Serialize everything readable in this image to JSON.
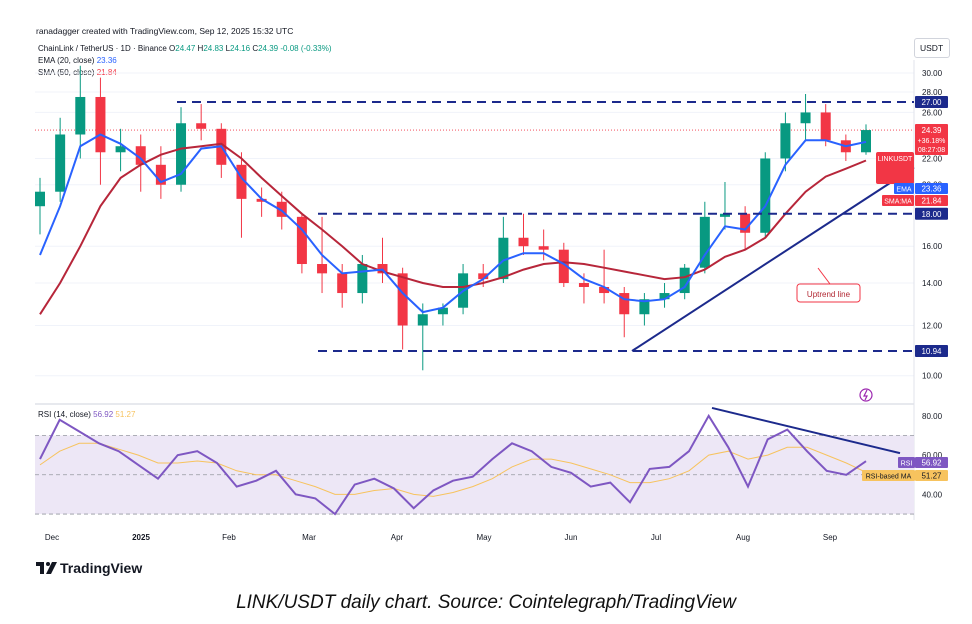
{
  "header": {
    "created_by": "ranadagger created with TradingView.com, Sep 12, 2025 15:32 UTC",
    "currency": "USDT"
  },
  "legend": {
    "symbol": "ChainLink / TetherUS · 1D · Binance",
    "ohlc": {
      "o_label": "O",
      "o": "24.47",
      "h_label": "H",
      "h": "24.83",
      "l_label": "L",
      "l": "24.16",
      "c_label": "C",
      "c": "24.39",
      "change": "-0.08 (-0.33%)"
    },
    "ema_label": "EMA (20, close)",
    "ema_value": "23.36",
    "sma_label": "SMA (50, close)",
    "sma_value": "21.84"
  },
  "rsi_legend": {
    "label": "RSI (14, close)",
    "value": "56.92",
    "ma_value": "51.27"
  },
  "branding": {
    "logo_text": "TradingView"
  },
  "caption": "LINK/USDT daily chart. Source: Cointelegraph/TradingView",
  "colors": {
    "up": "#089981",
    "down": "#f23645",
    "ema": "#2962ff",
    "sma": "#b7263a",
    "level": "#1c2a8c",
    "rsi": "#7e57c2",
    "rsi_ma": "#f7c35e",
    "rsi_band": "#ede7f6"
  },
  "chart_data": [
    {
      "type": "candlestick",
      "title": "ChainLink / TetherUS · 1D · Binance",
      "x_tick_labels": [
        "Dec",
        "2025",
        "Feb",
        "Mar",
        "Apr",
        "May",
        "Jun",
        "Jul",
        "Aug",
        "Sep"
      ],
      "y_tick_labels": [
        "30.00",
        "28.00",
        "26.00",
        "22.00",
        "20.00",
        "16.00",
        "14.00",
        "12.00",
        "10.00"
      ],
      "y_scale": "log",
      "ylim": [
        9.8,
        31.5
      ],
      "horizontal_levels": [
        {
          "label": "27.00",
          "value": 27.0
        },
        {
          "label": "18.00",
          "value": 18.0
        },
        {
          "label": "10.94",
          "value": 10.94
        }
      ],
      "trendline": {
        "label": "Uptrend line",
        "from": {
          "date": "Jun 22",
          "value": 10.94
        },
        "to": {
          "date": "Sep 20",
          "value": 21.3
        }
      },
      "price_labels": {
        "symbol": "LINKUSDT",
        "price": "24.39",
        "change": "+36.18%",
        "countdown": "08:27:08",
        "ema_tag": "EMA",
        "ema_value": "23.36",
        "sma_tag": "SMA:MA",
        "sma_value": "21.84"
      },
      "ohlc_approx_weekly": [
        {
          "week": "Nov 25",
          "o": 18.5,
          "h": 20.5,
          "l": 16.7,
          "c": 19.5
        },
        {
          "week": "Dec 2",
          "o": 19.5,
          "h": 25.5,
          "l": 18.8,
          "c": 24.0
        },
        {
          "week": "Dec 9",
          "o": 24.0,
          "h": 30.8,
          "l": 22.0,
          "c": 27.5
        },
        {
          "week": "Dec 16",
          "o": 27.5,
          "h": 29.5,
          "l": 20.0,
          "c": 22.5
        },
        {
          "week": "Dec 23",
          "o": 22.5,
          "h": 24.5,
          "l": 21.0,
          "c": 23.0
        },
        {
          "week": "Dec 30",
          "o": 23.0,
          "h": 24.0,
          "l": 19.5,
          "c": 21.5
        },
        {
          "week": "Jan 6",
          "o": 21.5,
          "h": 23.0,
          "l": 19.0,
          "c": 20.0
        },
        {
          "week": "Jan 13",
          "o": 20.0,
          "h": 26.5,
          "l": 19.5,
          "c": 25.0
        },
        {
          "week": "Jan 20",
          "o": 25.0,
          "h": 26.8,
          "l": 23.5,
          "c": 24.5
        },
        {
          "week": "Jan 27",
          "o": 24.5,
          "h": 25.0,
          "l": 20.5,
          "c": 21.5
        },
        {
          "week": "Feb 3",
          "o": 21.5,
          "h": 22.5,
          "l": 16.5,
          "c": 19.0
        },
        {
          "week": "Feb 10",
          "o": 19.0,
          "h": 19.8,
          "l": 17.8,
          "c": 18.8
        },
        {
          "week": "Feb 17",
          "o": 18.8,
          "h": 19.5,
          "l": 17.0,
          "c": 17.8
        },
        {
          "week": "Feb 24",
          "o": 17.8,
          "h": 18.0,
          "l": 14.5,
          "c": 15.0
        },
        {
          "week": "Mar 3",
          "o": 15.0,
          "h": 17.8,
          "l": 13.5,
          "c": 14.5
        },
        {
          "week": "Mar 10",
          "o": 14.5,
          "h": 15.0,
          "l": 12.8,
          "c": 13.5
        },
        {
          "week": "Mar 17",
          "o": 13.5,
          "h": 15.5,
          "l": 13.0,
          "c": 15.0
        },
        {
          "week": "Mar 24",
          "o": 15.0,
          "h": 16.5,
          "l": 14.0,
          "c": 14.5
        },
        {
          "week": "Mar 31",
          "o": 14.5,
          "h": 14.8,
          "l": 11.0,
          "c": 12.0
        },
        {
          "week": "Apr 7",
          "o": 12.0,
          "h": 13.0,
          "l": 10.2,
          "c": 12.5
        },
        {
          "week": "Apr 14",
          "o": 12.5,
          "h": 13.0,
          "l": 12.0,
          "c": 12.8
        },
        {
          "week": "Apr 21",
          "o": 12.8,
          "h": 15.0,
          "l": 12.5,
          "c": 14.5
        },
        {
          "week": "Apr 28",
          "o": 14.5,
          "h": 15.0,
          "l": 13.8,
          "c": 14.2
        },
        {
          "week": "May 5",
          "o": 14.2,
          "h": 17.8,
          "l": 14.0,
          "c": 16.5
        },
        {
          "week": "May 12",
          "o": 16.5,
          "h": 18.0,
          "l": 15.5,
          "c": 16.0
        },
        {
          "week": "May 19",
          "o": 16.0,
          "h": 17.0,
          "l": 15.2,
          "c": 15.8
        },
        {
          "week": "May 26",
          "o": 15.8,
          "h": 16.2,
          "l": 13.8,
          "c": 14.0
        },
        {
          "week": "Jun 2",
          "o": 14.0,
          "h": 14.5,
          "l": 13.0,
          "c": 13.8
        },
        {
          "week": "Jun 9",
          "o": 13.8,
          "h": 15.8,
          "l": 13.0,
          "c": 13.5
        },
        {
          "week": "Jun 16",
          "o": 13.5,
          "h": 13.8,
          "l": 11.5,
          "c": 12.5
        },
        {
          "week": "Jun 23",
          "o": 12.5,
          "h": 13.5,
          "l": 12.0,
          "c": 13.2
        },
        {
          "week": "Jun 30",
          "o": 13.2,
          "h": 14.0,
          "l": 12.8,
          "c": 13.5
        },
        {
          "week": "Jul 7",
          "o": 13.5,
          "h": 15.0,
          "l": 13.2,
          "c": 14.8
        },
        {
          "week": "Jul 14",
          "o": 14.8,
          "h": 18.8,
          "l": 14.5,
          "c": 17.8
        },
        {
          "week": "Jul 21",
          "o": 17.8,
          "h": 20.2,
          "l": 17.0,
          "c": 18.0
        },
        {
          "week": "Jul 28",
          "o": 18.0,
          "h": 18.5,
          "l": 15.8,
          "c": 16.8
        },
        {
          "week": "Aug 4",
          "o": 16.8,
          "h": 22.5,
          "l": 16.5,
          "c": 22.0
        },
        {
          "week": "Aug 11",
          "o": 22.0,
          "h": 26.0,
          "l": 21.0,
          "c": 25.0
        },
        {
          "week": "Aug 18",
          "o": 25.0,
          "h": 27.8,
          "l": 23.5,
          "c": 26.0
        },
        {
          "week": "Aug 25",
          "o": 26.0,
          "h": 26.8,
          "l": 23.0,
          "c": 23.5
        },
        {
          "week": "Sep 1",
          "o": 23.5,
          "h": 24.0,
          "l": 21.8,
          "c": 22.5
        },
        {
          "week": "Sep 8",
          "o": 22.5,
          "h": 24.9,
          "l": 22.3,
          "c": 24.39
        }
      ],
      "series": [
        {
          "name": "EMA (20, close)",
          "x": [
            "Nov 25",
            "Dec 2",
            "Dec 9",
            "Dec 16",
            "Dec 23",
            "Dec 30",
            "Jan 6",
            "Jan 13",
            "Jan 20",
            "Jan 27",
            "Feb 3",
            "Feb 10",
            "Feb 17",
            "Feb 24",
            "Mar 3",
            "Mar 10",
            "Mar 17",
            "Mar 24",
            "Mar 31",
            "Apr 7",
            "Apr 14",
            "Apr 21",
            "Apr 28",
            "May 5",
            "May 12",
            "May 19",
            "May 26",
            "Jun 2",
            "Jun 9",
            "Jun 16",
            "Jun 23",
            "Jun 30",
            "Jul 7",
            "Jul 14",
            "Jul 21",
            "Jul 28",
            "Aug 4",
            "Aug 11",
            "Aug 18",
            "Aug 25",
            "Sep 1",
            "Sep 8"
          ],
          "values": [
            15.5,
            18.5,
            23.0,
            24.0,
            23.2,
            22.0,
            20.2,
            20.8,
            22.8,
            23.0,
            20.5,
            19.0,
            18.2,
            17.0,
            15.5,
            14.5,
            14.6,
            14.7,
            13.5,
            12.6,
            12.8,
            13.6,
            14.2,
            15.2,
            15.6,
            15.6,
            15.0,
            14.2,
            13.8,
            13.2,
            13.1,
            13.2,
            13.8,
            15.5,
            17.2,
            17.0,
            18.5,
            21.5,
            23.5,
            23.5,
            23.0,
            23.36
          ]
        },
        {
          "name": "SMA (50, close)",
          "x": [
            "Nov 25",
            "Dec 2",
            "Dec 9",
            "Dec 16",
            "Dec 23",
            "Dec 30",
            "Jan 6",
            "Jan 13",
            "Jan 20",
            "Jan 27",
            "Feb 3",
            "Feb 10",
            "Feb 17",
            "Feb 24",
            "Mar 3",
            "Mar 10",
            "Mar 17",
            "Mar 24",
            "Mar 31",
            "Apr 7",
            "Apr 14",
            "Apr 21",
            "Apr 28",
            "May 5",
            "May 12",
            "May 19",
            "May 26",
            "Jun 2",
            "Jun 9",
            "Jun 16",
            "Jun 23",
            "Jun 30",
            "Jul 7",
            "Jul 14",
            "Jul 21",
            "Jul 28",
            "Aug 4",
            "Aug 11",
            "Aug 18",
            "Aug 25",
            "Sep 1",
            "Sep 8"
          ],
          "values": [
            12.5,
            14.0,
            16.0,
            18.5,
            20.5,
            21.5,
            22.3,
            22.8,
            23.0,
            23.2,
            22.0,
            20.5,
            19.2,
            18.0,
            17.0,
            16.0,
            15.0,
            14.6,
            14.3,
            14.0,
            13.8,
            13.8,
            14.0,
            14.3,
            14.7,
            15.0,
            15.1,
            15.0,
            14.8,
            14.6,
            14.4,
            14.2,
            14.3,
            14.7,
            15.4,
            15.8,
            16.5,
            18.0,
            19.5,
            20.6,
            21.2,
            21.84
          ]
        }
      ]
    },
    {
      "type": "line",
      "title": "RSI (14, close)",
      "y_tick_labels": [
        "80.00",
        "60.00",
        "40.00"
      ],
      "ylim": [
        28,
        85
      ],
      "band": [
        30,
        70
      ],
      "value_tags": {
        "rsi_tag": "RSI",
        "rsi_value": "56.92",
        "ma_tag": "RSI-based MA",
        "ma_value": "51.27"
      },
      "trendline": {
        "from": {
          "date": "Jul 22",
          "value": 84
        },
        "to": {
          "date": "Sep 18",
          "value": 61
        }
      },
      "series": [
        {
          "name": "RSI (14, close)",
          "values": [
            58,
            78,
            72,
            66,
            62,
            55,
            48,
            60,
            62,
            56,
            44,
            47,
            52,
            40,
            38,
            30,
            45,
            48,
            43,
            33,
            42,
            47,
            49,
            58,
            66,
            62,
            54,
            51,
            44,
            46,
            36,
            53,
            54,
            62,
            80,
            64,
            44,
            68,
            73,
            62,
            52,
            50,
            56.92
          ]
        },
        {
          "name": "RSI-based MA",
          "values": [
            55,
            62,
            66,
            66,
            63,
            60,
            56,
            56,
            57,
            56,
            52,
            50,
            50,
            47,
            44,
            40,
            40,
            42,
            43,
            40,
            39,
            41,
            44,
            48,
            54,
            58,
            58,
            56,
            53,
            50,
            46,
            46,
            48,
            52,
            60,
            62,
            58,
            60,
            64,
            64,
            60,
            56,
            51.27
          ]
        }
      ]
    }
  ]
}
